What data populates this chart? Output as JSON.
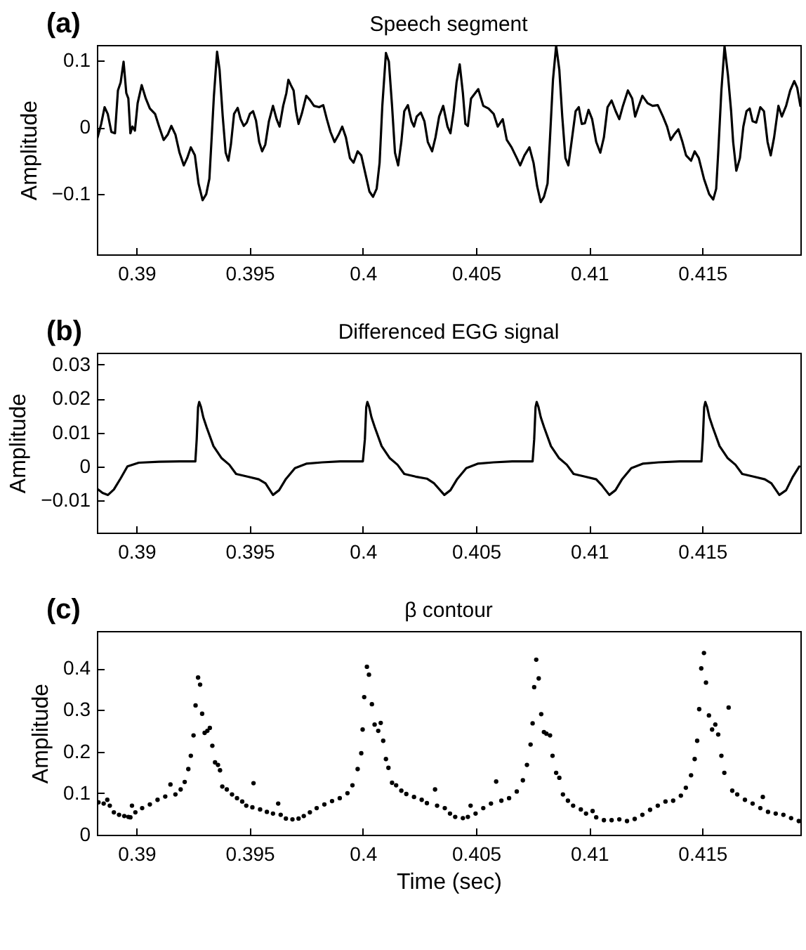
{
  "chart_data": [
    {
      "type": "line",
      "title": "Speech segment",
      "annotations": [
        "(a)"
      ],
      "ylabel": "Amplitude",
      "color": "#000000",
      "xlim": [
        0.38825,
        0.41933
      ],
      "ylim": [
        -0.19,
        0.123
      ],
      "xticks": [
        0.39,
        0.395,
        0.4,
        0.405,
        0.41,
        0.415
      ],
      "yticks": [
        {
          "value": -0.1,
          "label": "−0.1"
        },
        0,
        0.1
      ],
      "x": [
        0.38825,
        0.38844,
        0.38859,
        0.38873,
        0.38889,
        0.38905,
        0.38918,
        0.3893,
        0.38943,
        0.38955,
        0.38964,
        0.38973,
        0.38982,
        0.38993,
        0.39005,
        0.39023,
        0.39041,
        0.39059,
        0.39082,
        0.391,
        0.3912,
        0.39138,
        0.39154,
        0.39172,
        0.3919,
        0.39209,
        0.39224,
        0.3924,
        0.39258,
        0.39274,
        0.39292,
        0.39308,
        0.39322,
        0.39331,
        0.39342,
        0.39356,
        0.39367,
        0.39381,
        0.39394,
        0.39406,
        0.39417,
        0.39431,
        0.39447,
        0.3946,
        0.39474,
        0.39487,
        0.39501,
        0.39515,
        0.39528,
        0.39542,
        0.39555,
        0.39569,
        0.39585,
        0.39603,
        0.39619,
        0.39632,
        0.39648,
        0.39662,
        0.39671,
        0.39682,
        0.39694,
        0.39705,
        0.39716,
        0.3973,
        0.3975,
        0.39766,
        0.39784,
        0.39807,
        0.39825,
        0.39841,
        0.39857,
        0.39875,
        0.39893,
        0.39909,
        0.39925,
        0.39943,
        0.39959,
        0.39977,
        0.39993,
        0.40011,
        0.40029,
        0.40045,
        0.40061,
        0.40074,
        0.40086,
        0.40102,
        0.40115,
        0.40129,
        0.40142,
        0.40156,
        0.4017,
        0.40183,
        0.40199,
        0.40215,
        0.40226,
        0.40238,
        0.40256,
        0.40272,
        0.40287,
        0.40306,
        0.40321,
        0.40337,
        0.40355,
        0.40374,
        0.40387,
        0.40401,
        0.40414,
        0.40428,
        0.40442,
        0.40453,
        0.40464,
        0.40478,
        0.4051,
        0.40532,
        0.40555,
        0.40578,
        0.40596,
        0.40618,
        0.40636,
        0.40657,
        0.4068,
        0.40695,
        0.40714,
        0.40736,
        0.40754,
        0.4077,
        0.40786,
        0.408,
        0.40816,
        0.40827,
        0.4084,
        0.40854,
        0.40868,
        0.40881,
        0.40895,
        0.40908,
        0.40922,
        0.4094,
        0.40954,
        0.40967,
        0.40981,
        0.40997,
        0.41013,
        0.41031,
        0.41049,
        0.41065,
        0.41081,
        0.41099,
        0.41117,
        0.41133,
        0.41149,
        0.41171,
        0.4119,
        0.41203,
        0.41217,
        0.41235,
        0.41258,
        0.4128,
        0.41303,
        0.41326,
        0.41344,
        0.4136,
        0.41375,
        0.41394,
        0.41412,
        0.41428,
        0.4145,
        0.41466,
        0.41484,
        0.41507,
        0.4153,
        0.41548,
        0.41561,
        0.4157,
        0.41584,
        0.41598,
        0.41613,
        0.41627,
        0.41636,
        0.4165,
        0.41666,
        0.41681,
        0.41695,
        0.41709,
        0.41722,
        0.41738,
        0.41756,
        0.41772,
        0.41788,
        0.41802,
        0.41817,
        0.41836,
        0.41851,
        0.4187,
        0.41888,
        0.41906,
        0.41919,
        0.41933
      ],
      "values": [
        -0.019,
        0.005,
        0.03,
        0.02,
        -0.007,
        -0.009,
        0.055,
        0.067,
        0.098,
        0.051,
        0.043,
        -0.009,
        0.001,
        -0.005,
        0.036,
        0.063,
        0.043,
        0.028,
        0.02,
        0.001,
        -0.019,
        -0.011,
        0.002,
        -0.011,
        -0.038,
        -0.057,
        -0.046,
        -0.03,
        -0.042,
        -0.084,
        -0.109,
        -0.1,
        -0.077,
        -0.022,
        0.047,
        0.113,
        0.086,
        0.016,
        -0.038,
        -0.05,
        -0.026,
        0.02,
        0.029,
        0.012,
        0.002,
        0.007,
        0.02,
        0.024,
        0.01,
        -0.022,
        -0.036,
        -0.026,
        0.009,
        0.032,
        0.012,
        0.001,
        0.032,
        0.051,
        0.071,
        0.063,
        0.055,
        0.024,
        0.005,
        0.02,
        0.047,
        0.041,
        0.032,
        0.03,
        0.033,
        0.012,
        -0.007,
        -0.022,
        -0.011,
        0.001,
        -0.015,
        -0.046,
        -0.053,
        -0.036,
        -0.042,
        -0.069,
        -0.096,
        -0.104,
        -0.092,
        -0.053,
        0.032,
        0.111,
        0.098,
        0.032,
        -0.038,
        -0.057,
        -0.022,
        0.024,
        0.033,
        0.009,
        0.001,
        0.016,
        0.022,
        0.009,
        -0.022,
        -0.036,
        -0.015,
        0.016,
        0.032,
        0.001,
        -0.009,
        0.024,
        0.067,
        0.094,
        0.051,
        0.005,
        0.002,
        0.043,
        0.057,
        0.032,
        0.028,
        0.02,
        0.001,
        0.012,
        -0.019,
        -0.03,
        -0.046,
        -0.057,
        -0.042,
        -0.03,
        -0.053,
        -0.088,
        -0.112,
        -0.104,
        -0.084,
        -0.015,
        0.071,
        0.122,
        0.086,
        0.016,
        -0.046,
        -0.057,
        -0.022,
        0.024,
        0.03,
        0.005,
        0.006,
        0.026,
        0.012,
        -0.022,
        -0.038,
        -0.015,
        0.03,
        0.04,
        0.024,
        0.012,
        0.032,
        0.055,
        0.043,
        0.016,
        0.03,
        0.047,
        0.036,
        0.032,
        0.033,
        0.016,
        0.001,
        -0.019,
        -0.011,
        -0.003,
        -0.022,
        -0.042,
        -0.05,
        -0.036,
        -0.046,
        -0.077,
        -0.1,
        -0.108,
        -0.092,
        -0.038,
        0.055,
        0.121,
        0.078,
        0.024,
        -0.022,
        -0.065,
        -0.046,
        0.001,
        0.024,
        0.028,
        0.009,
        0.007,
        0.03,
        0.024,
        -0.022,
        -0.042,
        -0.015,
        0.032,
        0.016,
        0.032,
        0.055,
        0.069,
        0.059,
        0.032
      ]
    },
    {
      "type": "line",
      "title": "Differenced EGG signal",
      "annotations": [
        "(b)"
      ],
      "ylabel": "Amplitude",
      "color": "#000000",
      "xlim": [
        0.38825,
        0.41933
      ],
      "ylim": [
        -0.0195,
        0.0335
      ],
      "xticks": [
        0.39,
        0.395,
        0.4,
        0.405,
        0.41,
        0.415
      ],
      "yticks": [
        {
          "value": -0.01,
          "label": "−0.01"
        },
        0,
        0.01,
        0.02,
        0.03
      ],
      "x": [
        0.38825,
        0.3885,
        0.38874,
        0.389,
        0.3893,
        0.3896,
        0.3901,
        0.391,
        0.392,
        0.3926,
        0.39266,
        0.39272,
        0.39277,
        0.39285,
        0.39295,
        0.3931,
        0.3934,
        0.39375,
        0.3941,
        0.3944,
        0.3949,
        0.3954,
        0.3957,
        0.39603,
        0.3963,
        0.3966,
        0.397,
        0.3975,
        0.3982,
        0.399,
        0.4,
        0.40009,
        0.40015,
        0.4002,
        0.40028,
        0.40038,
        0.40053,
        0.40083,
        0.40118,
        0.40153,
        0.40183,
        0.40233,
        0.40283,
        0.40315,
        0.4036,
        0.40387,
        0.40417,
        0.40457,
        0.40507,
        0.40577,
        0.4066,
        0.4075,
        0.40757,
        0.40763,
        0.40768,
        0.40776,
        0.40786,
        0.40801,
        0.40831,
        0.40866,
        0.40901,
        0.40931,
        0.40981,
        0.41031,
        0.41055,
        0.41089,
        0.41116,
        0.41146,
        0.41186,
        0.41236,
        0.41306,
        0.414,
        0.41496,
        0.41502,
        0.41508,
        0.41513,
        0.41521,
        0.41531,
        0.41546,
        0.41576,
        0.41611,
        0.41646,
        0.41676,
        0.41726,
        0.41776,
        0.41805,
        0.4184,
        0.4187,
        0.419,
        0.41928
      ],
      "values": [
        -0.0065,
        -0.0078,
        -0.0084,
        -0.0068,
        -0.0035,
        0,
        0.0011,
        0.0014,
        0.0015,
        0.0015,
        0.008,
        0.0175,
        0.019,
        0.0175,
        0.0145,
        0.0115,
        0.006,
        0.0025,
        0.0005,
        -0.0022,
        -0.003,
        -0.0038,
        -0.005,
        -0.0084,
        -0.007,
        -0.0037,
        -0.0005,
        0.0008,
        0.0012,
        0.0015,
        0.0015,
        0.008,
        0.0175,
        0.019,
        0.0175,
        0.0145,
        0.0115,
        0.006,
        0.0025,
        0.0005,
        -0.0022,
        -0.003,
        -0.0036,
        -0.005,
        -0.0084,
        -0.007,
        -0.0037,
        -0.0005,
        0.0008,
        0.0012,
        0.0015,
        0.0015,
        0.008,
        0.0175,
        0.019,
        0.0175,
        0.0145,
        0.0115,
        0.006,
        0.0025,
        0.0005,
        -0.0022,
        -0.003,
        -0.0038,
        -0.0055,
        -0.0084,
        -0.007,
        -0.0037,
        -0.0005,
        0.0008,
        0.0012,
        0.0015,
        0.0015,
        0.008,
        0.0175,
        0.019,
        0.0175,
        0.0145,
        0.0115,
        0.006,
        0.0025,
        0.0005,
        -0.0022,
        -0.003,
        -0.0038,
        -0.005,
        -0.0084,
        -0.007,
        -0.003,
        0
      ]
    },
    {
      "type": "scatter",
      "title": "β contour",
      "annotations": [
        "(c)"
      ],
      "xlabel": "Time (sec)",
      "ylabel": "Amplitude",
      "color": "#000000",
      "marker": "circle",
      "xlim": [
        0.38825,
        0.41933
      ],
      "ylim": [
        0,
        0.49
      ],
      "xticks": [
        0.39,
        0.395,
        0.4,
        0.405,
        0.41,
        0.415
      ],
      "yticks": [
        0,
        0.1,
        0.2,
        0.3,
        0.4
      ],
      "x": [
        0.38832,
        0.38855,
        0.38871,
        0.38882,
        0.389,
        0.38923,
        0.38946,
        0.38964,
        0.3898,
        0.38973,
        0.38995,
        0.39025,
        0.39059,
        0.39093,
        0.39127,
        0.3915,
        0.39172,
        0.39195,
        0.39213,
        0.39229,
        0.3924,
        0.39252,
        0.39261,
        0.39272,
        0.39281,
        0.3929,
        0.39301,
        0.39313,
        0.39324,
        0.39335,
        0.39347,
        0.3936,
        0.39369,
        0.39379,
        0.39399,
        0.39422,
        0.39444,
        0.39467,
        0.39485,
        0.39517,
        0.39512,
        0.39546,
        0.39576,
        0.39603,
        0.39626,
        0.39637,
        0.3966,
        0.39689,
        0.39716,
        0.39739,
        0.39766,
        0.39796,
        0.3983,
        0.39864,
        0.39898,
        0.39932,
        0.39954,
        0.39977,
        0.39993,
        0.39999,
        0.40006,
        0.40018,
        0.40027,
        0.4004,
        0.40052,
        0.40068,
        0.40079,
        0.4009,
        0.40102,
        0.40113,
        0.40129,
        0.40147,
        0.4017,
        0.40192,
        0.40226,
        0.4026,
        0.40283,
        0.40319,
        0.40328,
        0.40362,
        0.40385,
        0.40408,
        0.40442,
        0.40464,
        0.40476,
        0.40498,
        0.40532,
        0.40566,
        0.40589,
        0.40612,
        0.40646,
        0.4068,
        0.40707,
        0.40725,
        0.40741,
        0.4075,
        0.40757,
        0.40766,
        0.40777,
        0.40788,
        0.408,
        0.40811,
        0.40827,
        0.40838,
        0.40854,
        0.40868,
        0.40884,
        0.40906,
        0.40929,
        0.40963,
        0.40986,
        0.41015,
        0.41031,
        0.41065,
        0.41099,
        0.41133,
        0.41167,
        0.41201,
        0.41235,
        0.41269,
        0.41303,
        0.41337,
        0.41371,
        0.41405,
        0.41427,
        0.4145,
        0.41466,
        0.41477,
        0.41486,
        0.41495,
        0.41507,
        0.41516,
        0.41529,
        0.41543,
        0.41557,
        0.4157,
        0.41584,
        0.41597,
        0.41616,
        0.41632,
        0.41654,
        0.41688,
        0.41722,
        0.41756,
        0.41767,
        0.4179,
        0.41824,
        0.41858,
        0.41892,
        0.41926
      ],
      "values": [
        0.078,
        0.075,
        0.084,
        0.07,
        0.054,
        0.048,
        0.045,
        0.043,
        0.07,
        0.042,
        0.054,
        0.064,
        0.073,
        0.084,
        0.092,
        0.121,
        0.097,
        0.109,
        0.127,
        0.158,
        0.19,
        0.239,
        0.311,
        0.378,
        0.361,
        0.291,
        0.245,
        0.25,
        0.257,
        0.214,
        0.174,
        0.168,
        0.155,
        0.116,
        0.109,
        0.097,
        0.088,
        0.08,
        0.07,
        0.124,
        0.066,
        0.061,
        0.055,
        0.051,
        0.075,
        0.048,
        0.039,
        0.037,
        0.039,
        0.045,
        0.054,
        0.064,
        0.073,
        0.081,
        0.088,
        0.1,
        0.119,
        0.158,
        0.196,
        0.253,
        0.331,
        0.404,
        0.385,
        0.314,
        0.265,
        0.25,
        0.269,
        0.226,
        0.182,
        0.161,
        0.125,
        0.119,
        0.106,
        0.098,
        0.091,
        0.084,
        0.076,
        0.109,
        0.07,
        0.064,
        0.051,
        0.043,
        0.04,
        0.043,
        0.07,
        0.051,
        0.064,
        0.075,
        0.128,
        0.082,
        0.088,
        0.104,
        0.131,
        0.168,
        0.217,
        0.268,
        0.355,
        0.421,
        0.376,
        0.29,
        0.247,
        0.243,
        0.239,
        0.19,
        0.149,
        0.137,
        0.097,
        0.082,
        0.07,
        0.061,
        0.051,
        0.057,
        0.042,
        0.035,
        0.035,
        0.037,
        0.033,
        0.038,
        0.048,
        0.06,
        0.07,
        0.08,
        0.082,
        0.094,
        0.113,
        0.143,
        0.182,
        0.226,
        0.302,
        0.4,
        0.437,
        0.366,
        0.287,
        0.253,
        0.265,
        0.241,
        0.19,
        0.149,
        0.306,
        0.106,
        0.097,
        0.084,
        0.075,
        0.064,
        0.091,
        0.055,
        0.051,
        0.048,
        0.04,
        0.033
      ]
    }
  ]
}
